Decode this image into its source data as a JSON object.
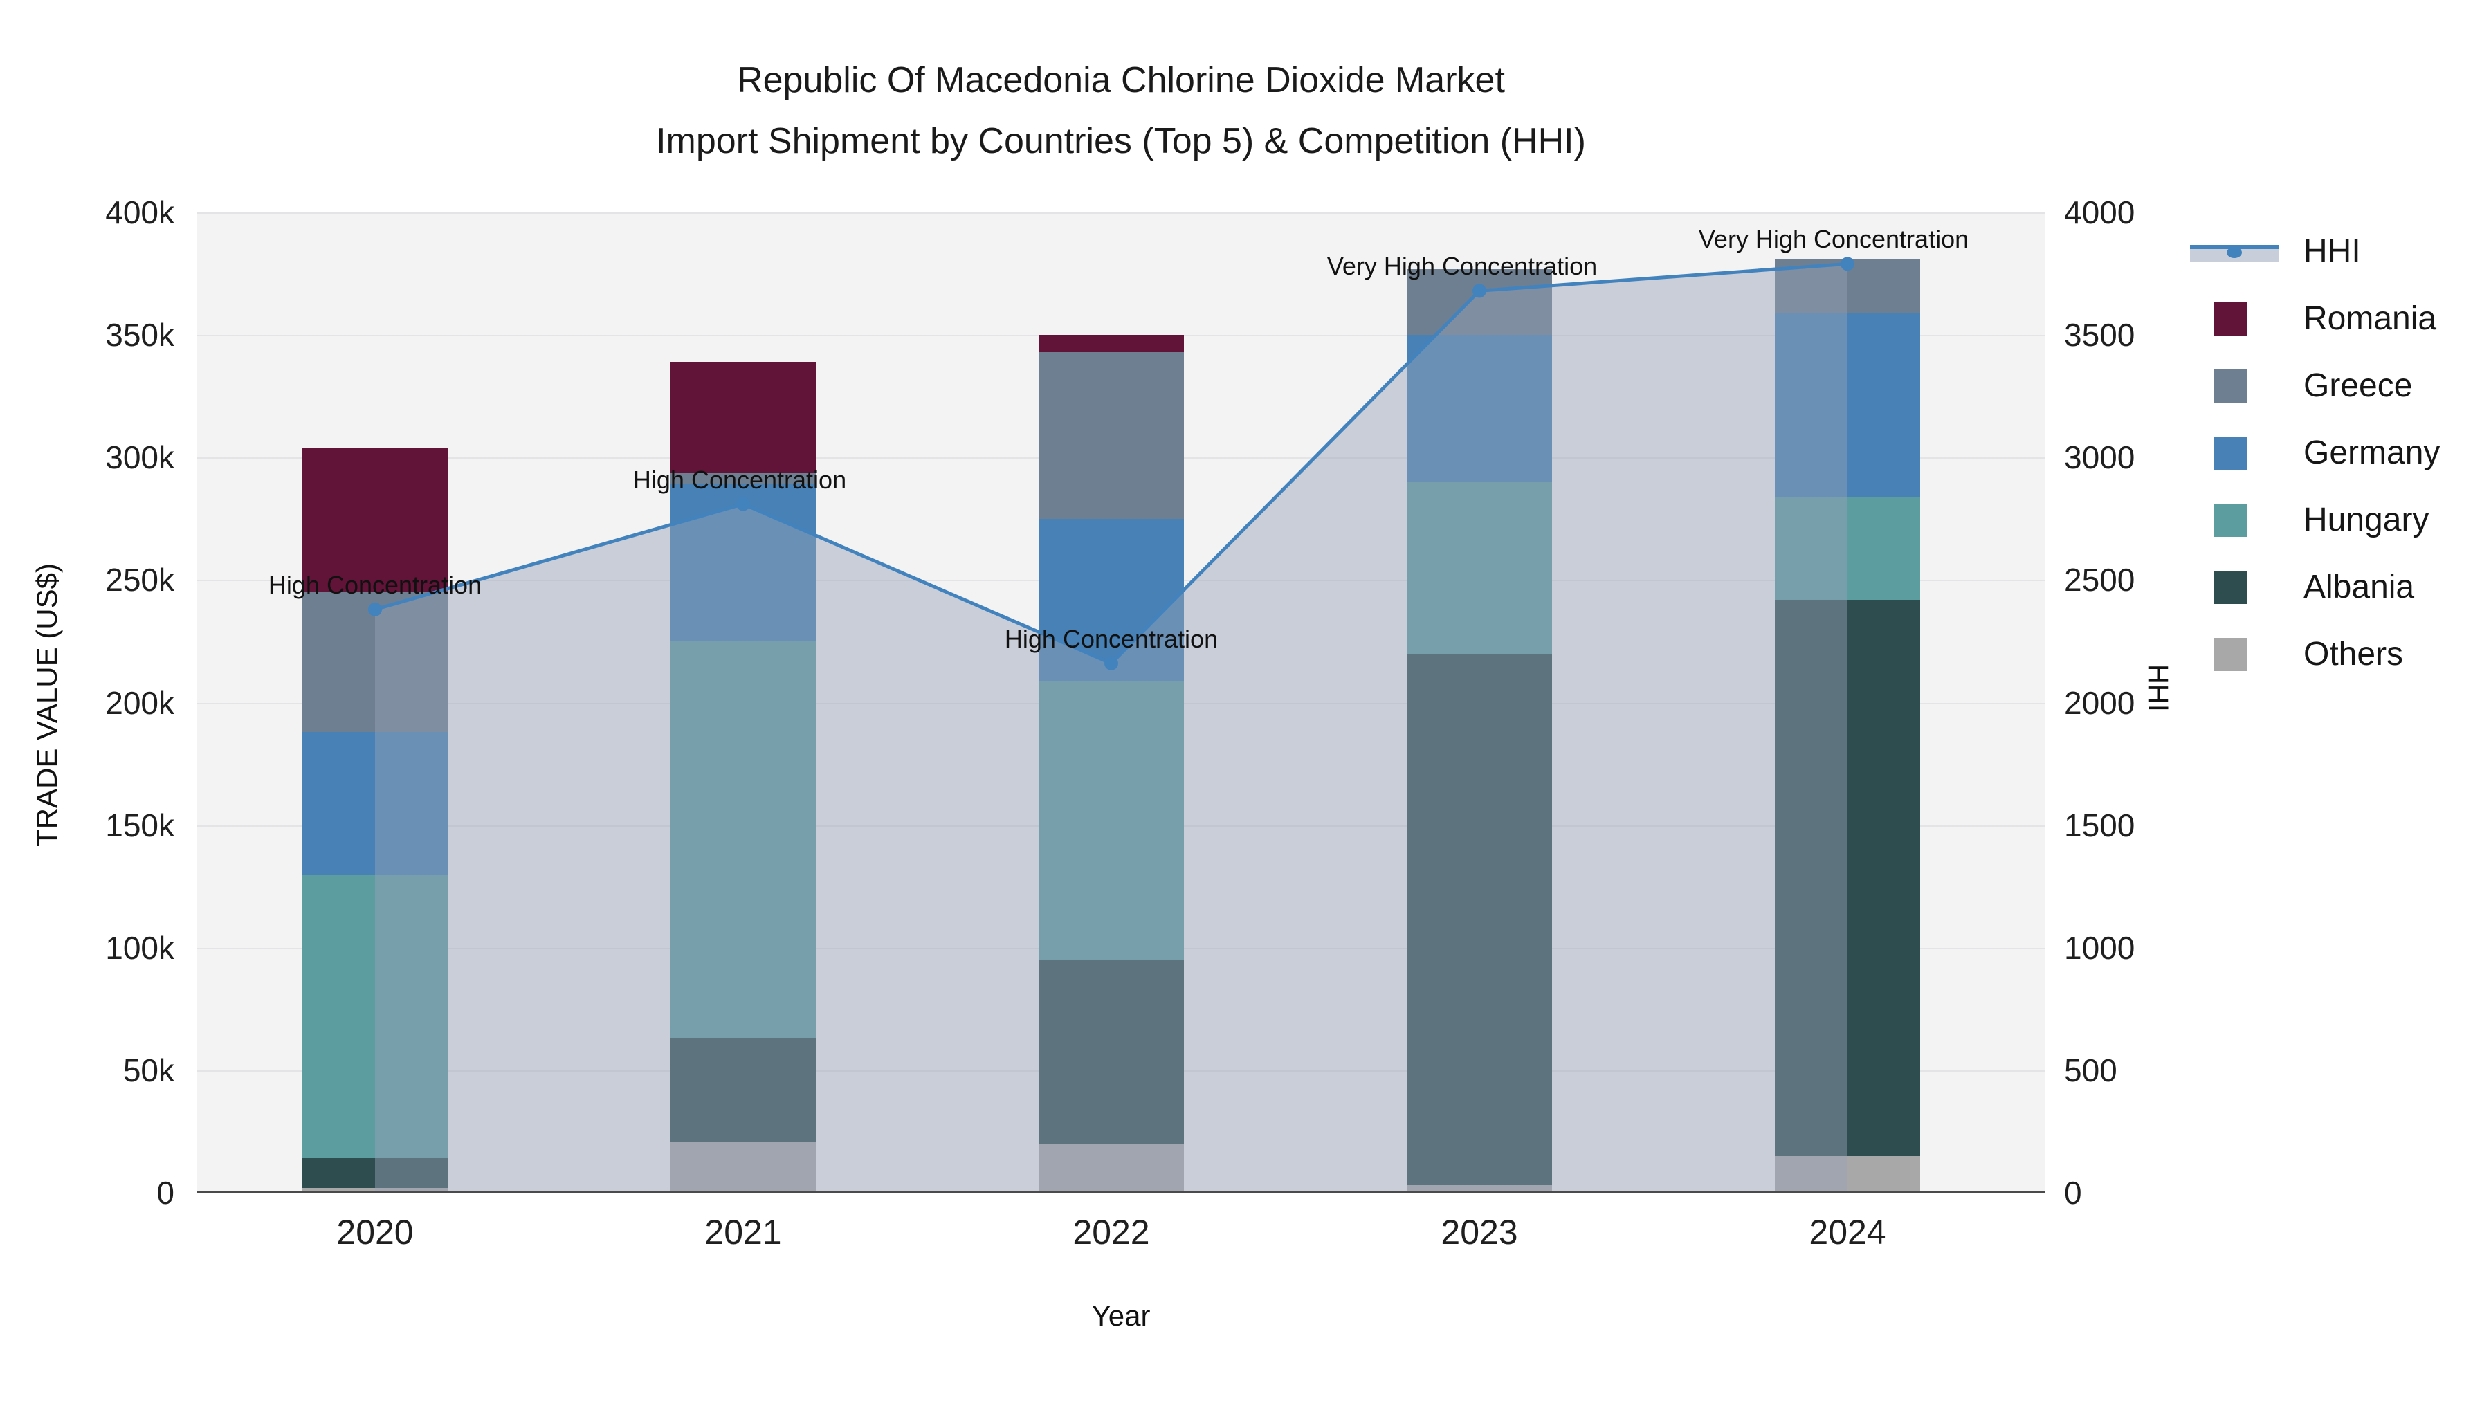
{
  "title": {
    "line1": "Republic Of Macedonia Chlorine Dioxide Market",
    "line2": "Import Shipment by Countries (Top 5) & Competition (HHI)"
  },
  "x_axis": {
    "title": "Year"
  },
  "y_left": {
    "title": "TRADE VALUE (US$)",
    "ticks": [
      "0",
      "50k",
      "100k",
      "150k",
      "200k",
      "250k",
      "300k",
      "350k",
      "400k"
    ]
  },
  "y_right": {
    "title": "HHI",
    "ticks": [
      "0",
      "500",
      "1000",
      "1500",
      "2000",
      "2500",
      "3000",
      "3500",
      "4000"
    ]
  },
  "colors": {
    "romania": "#611338",
    "greece": "#6e7f91",
    "germany": "#4781b5",
    "hungary": "#5c9da0",
    "albania": "#2e4d4e",
    "others": "#a8a8a8",
    "hhi_line": "#4383bd",
    "area_fill_rgba": "rgba(150,162,184,0.45)",
    "plot_bg": "#f3f3f4",
    "grid": "#e4e4e6",
    "axis_line": "#4a4a4a"
  },
  "legend": [
    {
      "label": "HHI",
      "swatch": "hhi"
    },
    {
      "label": "Romania",
      "swatch": "romania"
    },
    {
      "label": "Greece",
      "swatch": "greece"
    },
    {
      "label": "Germany",
      "swatch": "germany"
    },
    {
      "label": "Hungary",
      "swatch": "hungary"
    },
    {
      "label": "Albania",
      "swatch": "albania"
    },
    {
      "label": "Others",
      "swatch": "others"
    }
  ],
  "chart_data": {
    "type": "bar",
    "subtype": "stacked-bar-with-line-and-area",
    "title": "Republic Of Macedonia Chlorine Dioxide Market — Import Shipment by Countries (Top 5) & Competition (HHI)",
    "xlabel": "Year",
    "ylabel_left": "TRADE VALUE (US$)",
    "ylabel_right": "HHI",
    "categories": [
      "2020",
      "2021",
      "2022",
      "2023",
      "2024"
    ],
    "bar_value_unit": "US$ thousands",
    "ylim_left_thousands": [
      0,
      400
    ],
    "ylim_right": [
      0,
      4000
    ],
    "grid": "horizontal",
    "legend_position": "right",
    "stack_order_bottom_to_top": [
      "Others",
      "Albania",
      "Hungary",
      "Germany",
      "Greece",
      "Romania"
    ],
    "series": [
      {
        "name": "Others",
        "values": [
          2,
          21,
          20,
          3,
          15
        ]
      },
      {
        "name": "Albania",
        "values": [
          12,
          42,
          75,
          217,
          227
        ]
      },
      {
        "name": "Hungary",
        "values": [
          116,
          162,
          114,
          70,
          42
        ]
      },
      {
        "name": "Germany",
        "values": [
          58,
          64,
          66,
          60,
          75
        ]
      },
      {
        "name": "Greece",
        "values": [
          57,
          5,
          68,
          27,
          22
        ]
      },
      {
        "name": "Romania",
        "values": [
          59,
          45,
          7,
          0,
          0
        ]
      }
    ],
    "bar_totals_thousands": [
      304,
      339,
      350,
      377,
      381
    ],
    "line_series": {
      "name": "HHI",
      "axis": "right",
      "values": [
        2380,
        2810,
        2160,
        3680,
        3790
      ],
      "area_fill_under_line": true
    },
    "annotations": [
      {
        "category": "2020",
        "text": "High Concentration"
      },
      {
        "category": "2021",
        "text": "High Concentration"
      },
      {
        "category": "2022",
        "text": "High Concentration"
      },
      {
        "category": "2023",
        "text": "Very High Concentration"
      },
      {
        "category": "2024",
        "text": "Very High Concentration"
      }
    ]
  }
}
